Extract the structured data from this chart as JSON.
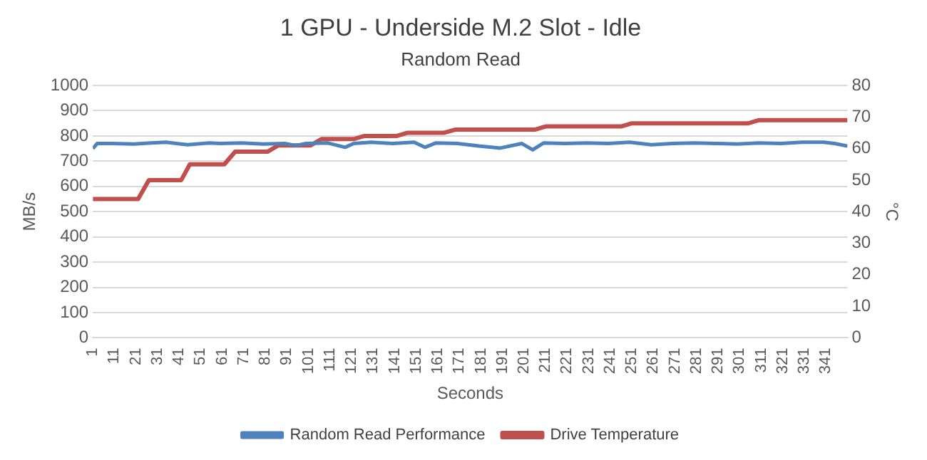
{
  "chart_data": {
    "type": "line",
    "title": "1 GPU - Underside M.2 Slot - Idle",
    "subtitle": "Random Read",
    "xlabel": "Seconds",
    "ylabel": "MB/s",
    "y2label": "°C",
    "xlim": [
      1,
      351
    ],
    "xticks": [
      1,
      11,
      21,
      31,
      41,
      51,
      61,
      71,
      81,
      91,
      101,
      111,
      121,
      131,
      141,
      151,
      161,
      171,
      181,
      191,
      201,
      211,
      221,
      231,
      241,
      251,
      261,
      271,
      281,
      291,
      301,
      311,
      321,
      331,
      341
    ],
    "ylim": [
      0,
      1000
    ],
    "yticks": [
      0,
      100,
      200,
      300,
      400,
      500,
      600,
      700,
      800,
      900,
      1000
    ],
    "y2lim": [
      0,
      80
    ],
    "y2ticks": [
      0,
      10,
      20,
      30,
      40,
      50,
      60,
      70,
      80
    ],
    "grid": "y",
    "legend": "bottom",
    "marker": "none",
    "line_style": "solid",
    "series": [
      {
        "name": "Random Read Performance",
        "color": "#4f81bd",
        "x": [
          1,
          3,
          10,
          20,
          28,
          35,
          45,
          55,
          60,
          70,
          80,
          90,
          95,
          100,
          110,
          118,
          122,
          130,
          140,
          150,
          155,
          160,
          170,
          180,
          190,
          200,
          205,
          210,
          220,
          230,
          240,
          250,
          260,
          270,
          280,
          290,
          300,
          310,
          320,
          330,
          340,
          345,
          351
        ],
        "values": [
          750,
          770,
          770,
          768,
          772,
          775,
          765,
          772,
          770,
          772,
          768,
          770,
          762,
          770,
          772,
          755,
          770,
          775,
          770,
          775,
          755,
          772,
          770,
          760,
          752,
          770,
          745,
          772,
          770,
          772,
          770,
          775,
          765,
          770,
          772,
          770,
          768,
          772,
          770,
          775,
          775,
          770,
          760
        ]
      },
      {
        "name": "Drive Temperature",
        "color": "#c0504d",
        "axis": "y2",
        "x": [
          1,
          22,
          27,
          42,
          46,
          62,
          67,
          82,
          87,
          102,
          107,
          122,
          127,
          142,
          147,
          164,
          169,
          206,
          211,
          246,
          251,
          305,
          310,
          351
        ],
        "values": [
          44,
          44,
          50,
          50,
          55,
          55,
          59,
          59,
          61,
          61,
          63,
          63,
          64,
          64,
          65,
          65,
          66,
          66,
          67,
          67,
          68,
          68,
          69,
          69
        ]
      }
    ]
  }
}
